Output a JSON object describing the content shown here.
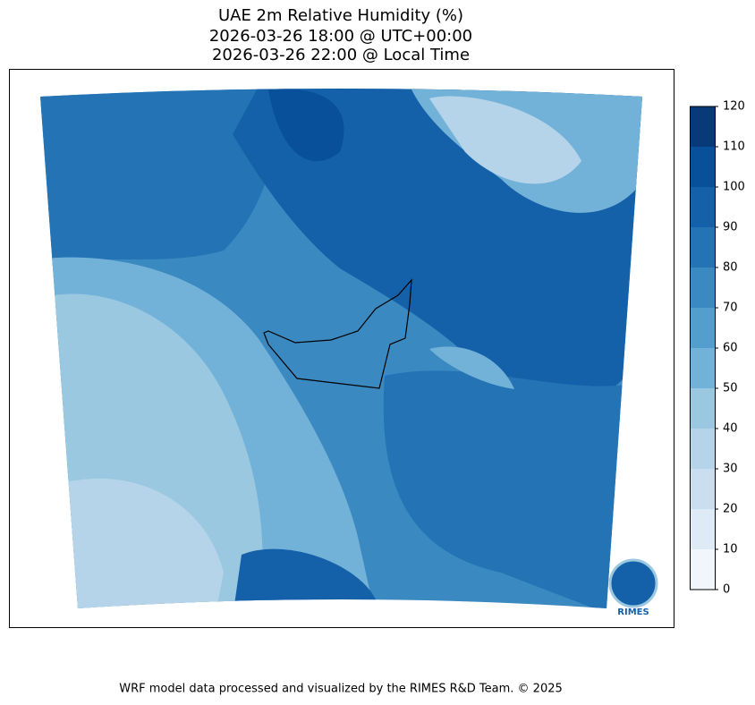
{
  "title": [
    "UAE 2m Relative Humidity (%)",
    "2026-03-26 18:00 @ UTC+00:00",
    "2026-03-26 22:00 @ Local Time"
  ],
  "colorbar": {
    "levels": [
      0,
      10,
      20,
      30,
      40,
      50,
      60,
      70,
      80,
      90,
      100,
      110,
      120
    ],
    "colors": [
      "#f0f6fc",
      "#deebf7",
      "#cbdef0",
      "#b5d4e9",
      "#9ac8e0",
      "#73b2d8",
      "#539ecd",
      "#3a89c1",
      "#2473b4",
      "#1561a9",
      "#08509a",
      "#083a7a"
    ]
  },
  "logo": "RIMES",
  "footer": "WRF model data processed and visualized by the RIMES R&D Team. © 2025"
}
